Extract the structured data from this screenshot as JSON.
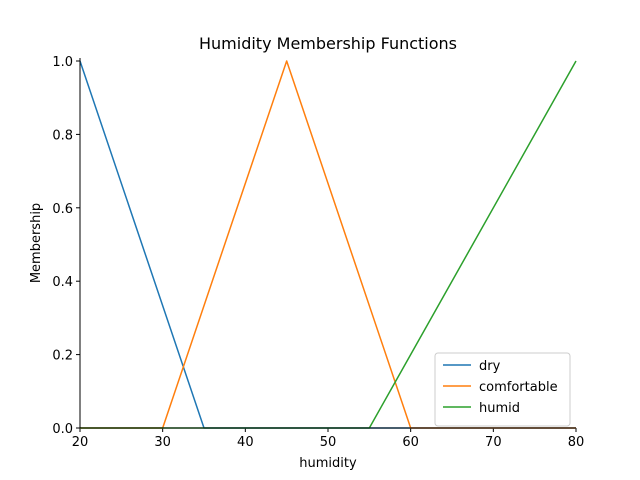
{
  "chart_data": {
    "type": "line",
    "title": "Humidity Membership Functions",
    "xlabel": "humidity",
    "ylabel": "Membership",
    "xlim": [
      20,
      80
    ],
    "ylim": [
      0,
      1.0
    ],
    "x_ticks": [
      20,
      30,
      40,
      50,
      60,
      70,
      80
    ],
    "y_ticks": [
      0.0,
      0.2,
      0.4,
      0.6,
      0.8,
      1.0
    ],
    "x_tick_labels": [
      "20",
      "30",
      "40",
      "50",
      "60",
      "70",
      "80"
    ],
    "y_tick_labels": [
      "0.0",
      "0.2",
      "0.4",
      "0.6",
      "0.8",
      "1.0"
    ],
    "grid": false,
    "legend_position": "lower-right",
    "series": [
      {
        "name": "dry",
        "color": "#1f77b4",
        "x": [
          20,
          35,
          80
        ],
        "y": [
          1.0,
          0.0,
          0.0
        ]
      },
      {
        "name": "comfortable",
        "color": "#ff7f0e",
        "x": [
          20,
          30,
          45,
          60,
          80
        ],
        "y": [
          0.0,
          0.0,
          1.0,
          0.0,
          0.0
        ]
      },
      {
        "name": "humid",
        "color": "#2ca02c",
        "x": [
          20,
          55,
          80
        ],
        "y": [
          0.0,
          0.0,
          1.0
        ]
      }
    ]
  }
}
